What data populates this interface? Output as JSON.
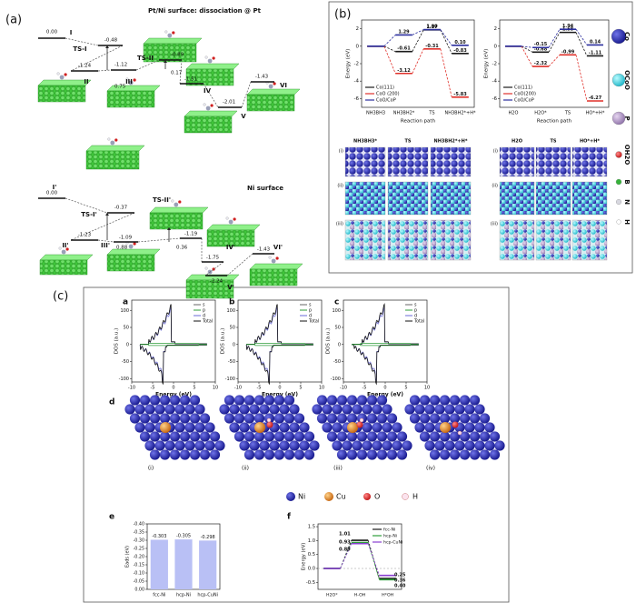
{
  "panel_a": {
    "label": "(a)",
    "titles": [
      "Pt/Ni surface: dissociation @ Pt",
      "Ni surface"
    ],
    "states": [
      "I",
      "TS-I",
      "II",
      "III",
      "TS-II",
      "IV",
      "V",
      "VI",
      "I'",
      "TS-I'",
      "II'",
      "III'",
      "TS-II'",
      "IV'",
      "V'",
      "VI'"
    ],
    "energies": [
      "0.00",
      "-0.48",
      "-1.24",
      "-1.12",
      "-0.89",
      "-1.51",
      "-2.01",
      "-1.43",
      "0.00",
      "-0.37",
      "-1.23",
      "-1.09",
      "-1.19",
      "-1.75",
      "-2.24",
      "-1.43"
    ],
    "barriers": [
      "0.75",
      "0.17",
      "0.88",
      "0.36"
    ]
  },
  "panel_b": {
    "label": "(b)",
    "charts": [
      {
        "type": "energy-profile",
        "ylabel": "Energy (eV)",
        "xlabel": "Reaction path",
        "categories": [
          "NH3BH3",
          "NH3BH2*",
          "TS",
          "NH3BH2*+H*"
        ],
        "ylim": [
          -7,
          3
        ],
        "yticks": [
          -6,
          -4,
          -2,
          0,
          2
        ],
        "series": [
          {
            "name": "Co(111)",
            "color": "#1a1a1a",
            "values": [
              0,
              -0.61,
              1.87,
              -0.83
            ],
            "value_labels": [
              null,
              "-0.61",
              "1.87",
              "-0.83"
            ]
          },
          {
            "name": "CoO (200)",
            "color": "#e0302a",
            "values": [
              0,
              -3.12,
              -0.31,
              -5.83
            ],
            "value_labels": [
              null,
              "-3.12",
              "-0.31",
              "-5.83"
            ]
          },
          {
            "name": "CoO/CoP",
            "color": "#2b2f9e",
            "values": [
              0,
              1.29,
              1.9,
              0.1
            ],
            "value_labels": [
              null,
              "1.29",
              "1.90",
              "0.10"
            ]
          }
        ]
      },
      {
        "type": "energy-profile",
        "ylabel": "Energy (eV)",
        "xlabel": "Reaction path",
        "categories": [
          "H2O",
          "H2O*",
          "TS",
          "HO*+H*"
        ],
        "ylim": [
          -7,
          3
        ],
        "yticks": [
          -6,
          -4,
          -2,
          0,
          2
        ],
        "series": [
          {
            "name": "Co(111)",
            "color": "#1a1a1a",
            "values": [
              0,
              -0.68,
              1.58,
              -1.11
            ],
            "value_labels": [
              null,
              "-0.68",
              "1.58",
              "-1.11"
            ]
          },
          {
            "name": "CoO(200)",
            "color": "#e0302a",
            "values": [
              0,
              -2.32,
              -0.99,
              -6.27
            ],
            "value_labels": [
              null,
              "-2.32",
              "-0.99",
              "-6.27"
            ]
          },
          {
            "name": "CoO/CoP",
            "color": "#2b2f9e",
            "values": [
              0,
              -0.15,
              1.94,
              0.14
            ],
            "value_labels": [
              null,
              "-0.15",
              "1.94",
              "0.14"
            ]
          }
        ]
      }
    ],
    "image_columns": [
      [
        "NH3BH3*",
        "TS",
        "NH3BH2*+H*"
      ],
      [
        "H2O",
        "TS",
        "HO*+H*"
      ]
    ],
    "rows": [
      "(i)",
      "(ii)",
      "(iii)"
    ],
    "legend": [
      "Co",
      "OCoO",
      "P",
      "OH2O",
      "B",
      "N",
      "H"
    ]
  },
  "panel_c": {
    "label": "(c)",
    "dos": {
      "panels": [
        "a",
        "b",
        "c"
      ],
      "xlabel": "Energy (eV)",
      "ylabel": "DOS (a.u.)",
      "legend": [
        "s",
        "p",
        "d",
        "Total"
      ],
      "colors": [
        "#666666",
        "#2e9e3a",
        "#6a6ad8",
        "#111111"
      ],
      "xlim": [
        -10,
        10
      ],
      "ylim": [
        -110,
        130
      ],
      "xticks": [
        -10,
        -5,
        0,
        5,
        10
      ],
      "yticks": [
        -100,
        -50,
        0,
        50,
        100
      ]
    },
    "d": {
      "label": "d",
      "images": [
        "(i)",
        "(ii)",
        "(iii)",
        "(iv)"
      ],
      "legend": [
        "Ni",
        "Cu",
        "O",
        "H"
      ]
    },
    "e": {
      "type": "bar",
      "label": "e",
      "ylabel": "Eads (eV)",
      "categories": [
        "fcc-Ni",
        "hcp-Ni",
        "hcp-CuNi"
      ],
      "values": [
        -0.303,
        -0.305,
        -0.298
      ],
      "color": "#b9c0f5",
      "ylim": [
        0,
        -0.4
      ],
      "yticks": [
        {
          "value": -0.4,
          "label": "-0.40"
        },
        {
          "value": -0.35,
          "label": "-0.35"
        },
        {
          "value": -0.3,
          "label": "-0.30"
        },
        {
          "value": -0.25,
          "label": "-0.25"
        },
        {
          "value": -0.2,
          "label": "-0.20"
        },
        {
          "value": -0.15,
          "label": "-0.15"
        },
        {
          "value": -0.1,
          "label": "-0.10"
        },
        {
          "value": -0.05,
          "label": "-0.05"
        },
        {
          "value": 0,
          "label": "0.00"
        }
      ]
    },
    "f": {
      "type": "energy-profile",
      "label": "f",
      "ylabel": "Energy (eV)",
      "categories": [
        "H2O*",
        "H-OH",
        "H*OH"
      ],
      "ylim": [
        -0.75,
        1.6
      ],
      "yticks": [
        -0.5,
        {
          "value": 0,
          "label": "0.0"
        },
        0.5,
        {
          "value": 1,
          "label": "1.0"
        },
        1.5
      ],
      "series": [
        {
          "name": "fcc-Ni",
          "color": "#1a1a1a",
          "values": [
            0,
            1.01,
            -0.36
          ]
        },
        {
          "name": "hcp-Ni",
          "color": "#2e9e3a",
          "values": [
            0,
            0.93,
            -0.4
          ]
        },
        {
          "name": "hcp-CuNi",
          "color": "#8a3fd0",
          "values": [
            0,
            0.89,
            -0.25
          ]
        }
      ],
      "annotations": [
        "0.25",
        "0.36",
        "0.40"
      ]
    }
  }
}
